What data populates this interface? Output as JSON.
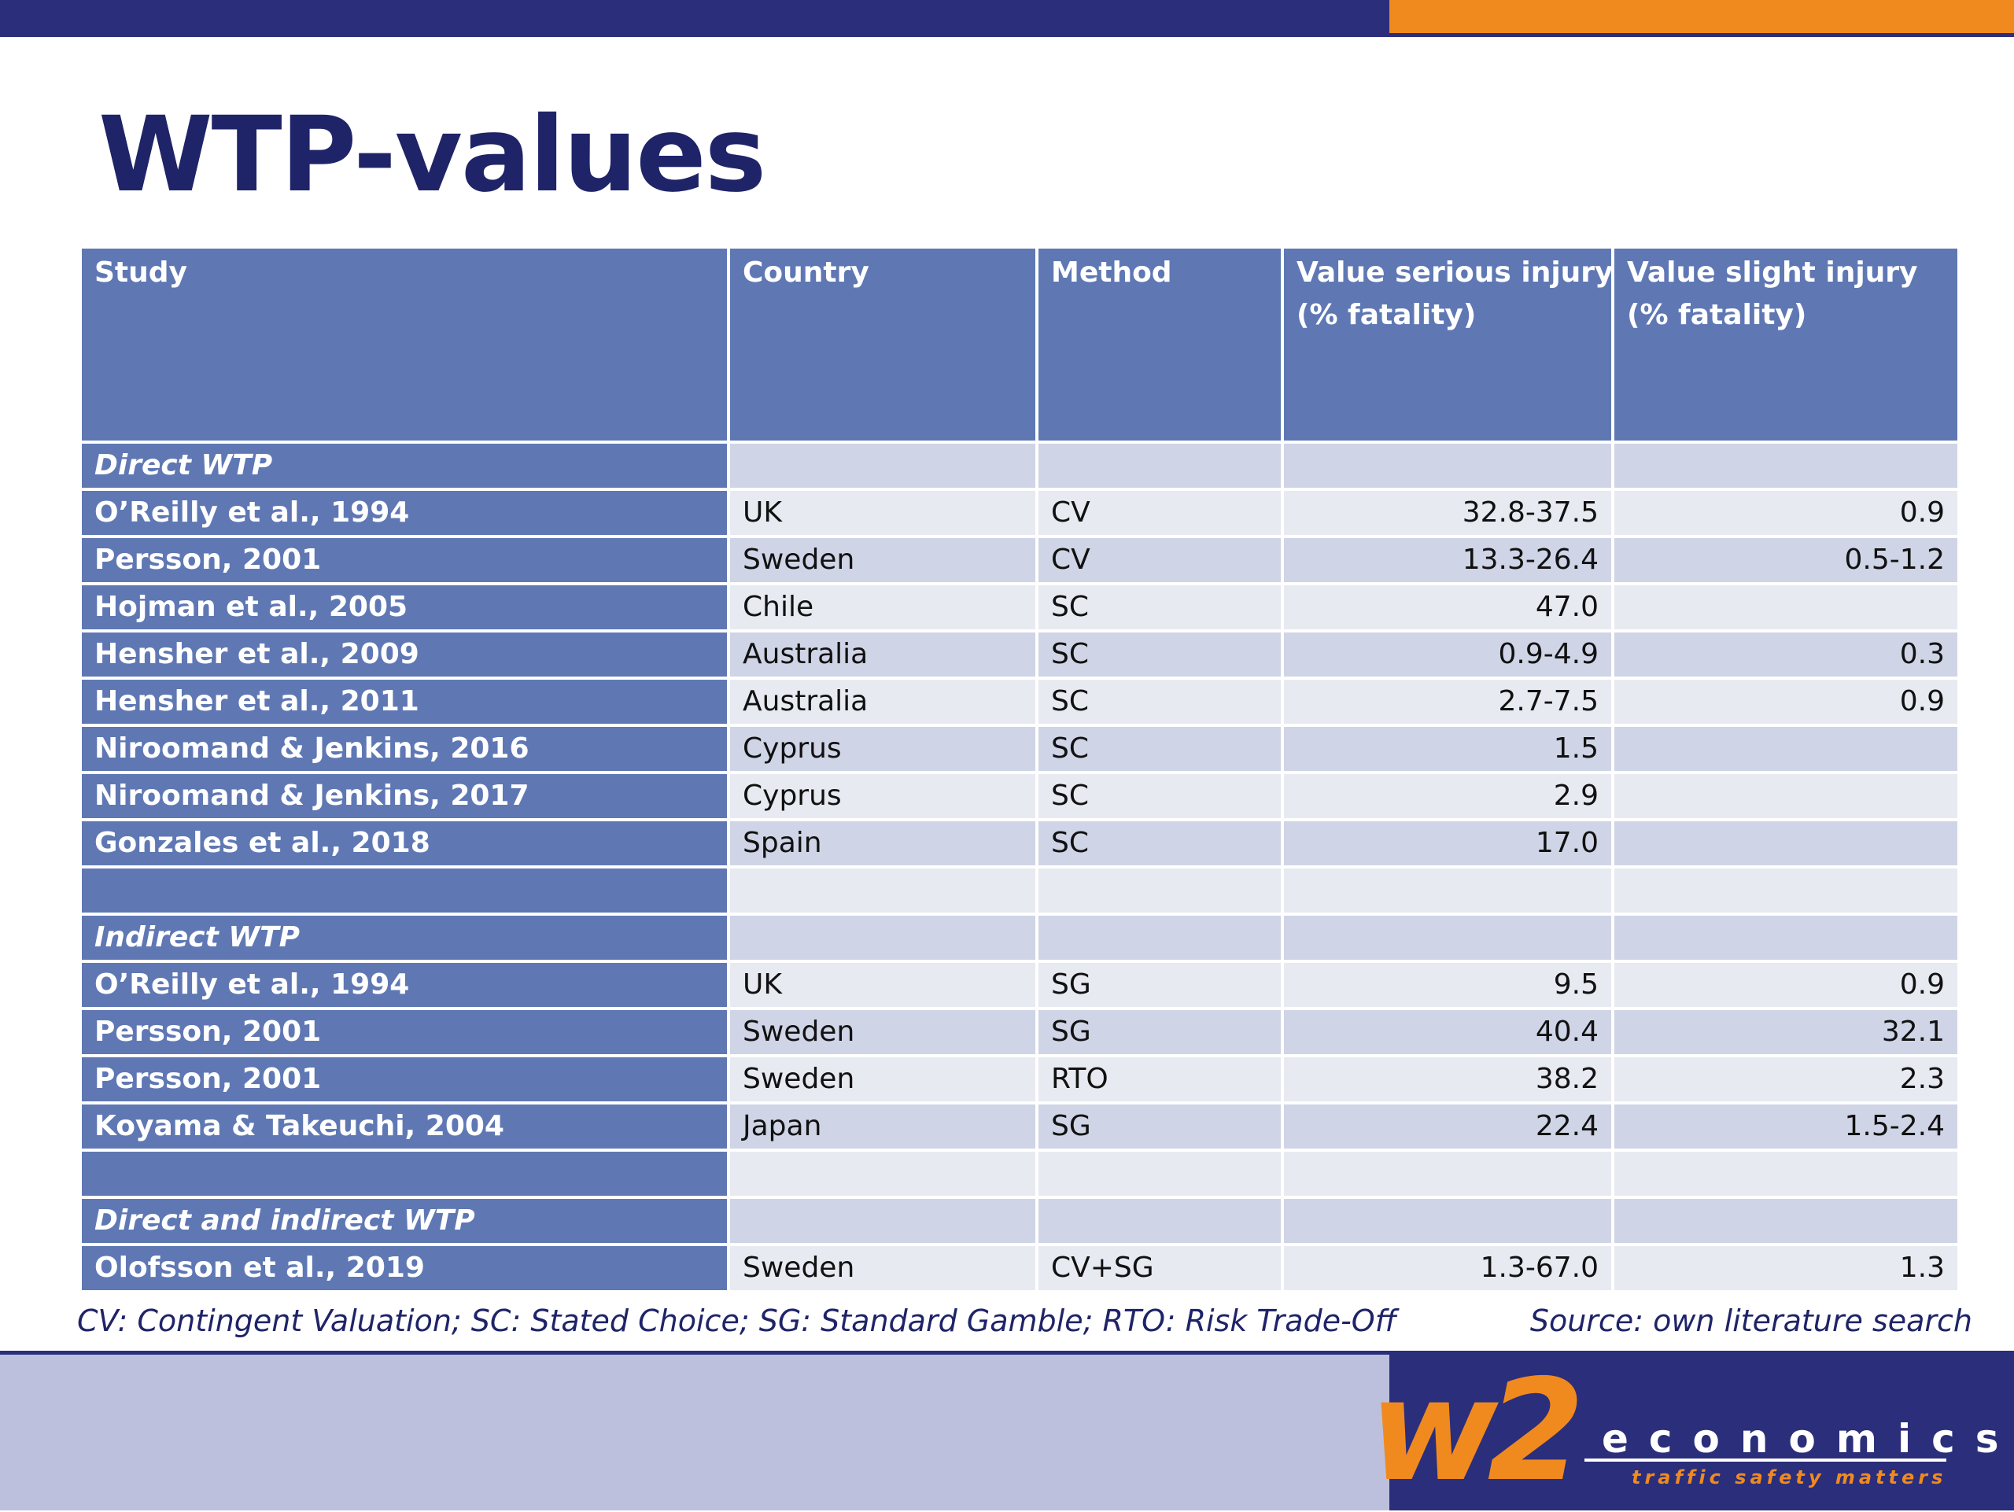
{
  "title": "WTP-values",
  "table": {
    "headers": {
      "study": "Study",
      "country": "Country",
      "method": "Method",
      "serious_1": "Value serious injury",
      "serious_2": "(% fatality)",
      "slight_1": "Value slight injury",
      "slight_2": "(% fatality)"
    },
    "sections": [
      {
        "label": "Direct WTP",
        "rows": [
          {
            "study": "O’Reilly et al., 1994",
            "country": "UK",
            "method": "CV",
            "serious": "32.8-37.5",
            "slight": "0.9"
          },
          {
            "study": "Persson, 2001",
            "country": "Sweden",
            "method": "CV",
            "serious": "13.3-26.4",
            "slight": "0.5-1.2"
          },
          {
            "study": "Hojman et al., 2005",
            "country": "Chile",
            "method": "SC",
            "serious": "47.0",
            "slight": ""
          },
          {
            "study": "Hensher et al., 2009",
            "country": "Australia",
            "method": "SC",
            "serious": "0.9-4.9",
            "slight": "0.3"
          },
          {
            "study": "Hensher et al., 2011",
            "country": "Australia",
            "method": "SC",
            "serious": "2.7-7.5",
            "slight": "0.9"
          },
          {
            "study": "Niroomand & Jenkins, 2016",
            "country": "Cyprus",
            "method": "SC",
            "serious": "1.5",
            "slight": ""
          },
          {
            "study": "Niroomand & Jenkins, 2017",
            "country": "Cyprus",
            "method": "SC",
            "serious": "2.9",
            "slight": ""
          },
          {
            "study": "Gonzales et al., 2018",
            "country": "Spain",
            "method": "SC",
            "serious": "17.0",
            "slight": ""
          }
        ]
      },
      {
        "label": "Indirect WTP",
        "rows": [
          {
            "study": "O’Reilly et al., 1994",
            "country": "UK",
            "method": "SG",
            "serious": "9.5",
            "slight": "0.9"
          },
          {
            "study": "Persson, 2001",
            "country": "Sweden",
            "method": "SG",
            "serious": "40.4",
            "slight": "32.1"
          },
          {
            "study": "Persson, 2001",
            "country": "Sweden",
            "method": "RTO",
            "serious": "38.2",
            "slight": "2.3"
          },
          {
            "study": "Koyama & Takeuchi, 2004",
            "country": "Japan",
            "method": "SG",
            "serious": "22.4",
            "slight": "1.5-2.4"
          }
        ]
      },
      {
        "label": "Direct and indirect WTP",
        "rows": [
          {
            "study": "Olofsson et al., 2019",
            "country": "Sweden",
            "method": "CV+SG",
            "serious": "1.3-67.0",
            "slight": "1.3"
          }
        ]
      }
    ]
  },
  "footnote": "CV: Contingent Valuation; SC: Stated Choice; SG: Standard Gamble; RTO: Risk Trade-Off",
  "source": "Source: own literature search",
  "logo": {
    "mark": "w2",
    "word": "economics",
    "tagline": "traffic safety matters"
  },
  "colors": {
    "navy": "#2b2e7a",
    "orange": "#f08a1f",
    "header_blue": "#5f78b4",
    "row_light": "#e8eaf2",
    "row_dark": "#cfd4e6",
    "band": "#bdc0dd"
  }
}
